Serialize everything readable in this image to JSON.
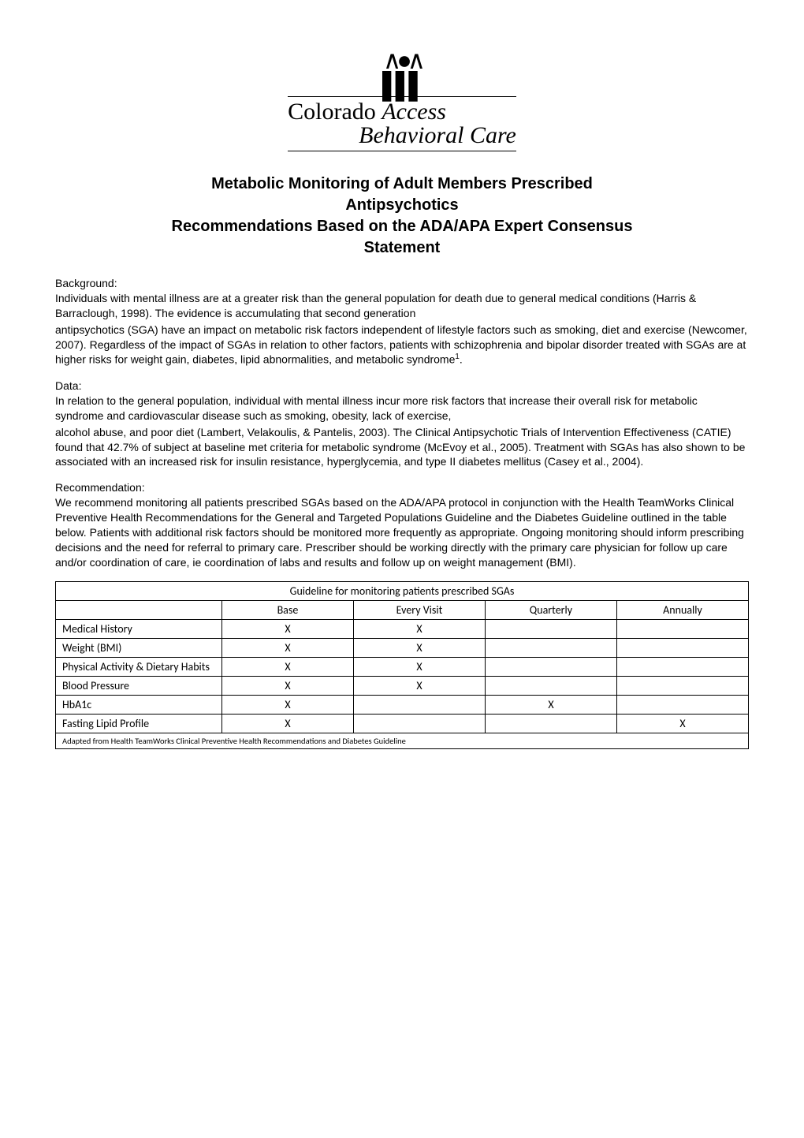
{
  "logo": {
    "line1_plain": "Colorado ",
    "line1_italic": "Access",
    "line2": "Behavioral Care"
  },
  "title_lines": [
    "Metabolic Monitoring of Adult Members Prescribed",
    "Antipsychotics",
    "Recommendations Based on the ADA/APA Expert Consensus",
    "Statement"
  ],
  "sections": {
    "background": {
      "label": "Background:",
      "p1": "Individuals with mental illness are at a greater risk than the general population for death due to general medical conditions (Harris & Barraclough, 1998). The evidence is accumulating that second generation",
      "p2_pre": "antipsychotics (SGA) have an impact on metabolic risk factors independent of lifestyle factors such as smoking, diet and exercise (Newcomer, 2007). Regardless of the impact of SGAs in relation to other factors, patients with schizophrenia and bipolar disorder treated with SGAs are at higher risks for weight gain, diabetes, lipid abnormalities, and metabolic syndrome",
      "p2_sup": "1",
      "p2_post": "."
    },
    "data": {
      "label": "Data:",
      "p1": "In relation to the general population, individual with mental illness incur more risk factors that increase their overall risk for metabolic syndrome and cardiovascular disease such as smoking, obesity, lack of exercise,",
      "p2": "alcohol abuse, and poor diet (Lambert, Velakoulis, & Pantelis, 2003). The Clinical Antipsychotic Trials of Intervention Effectiveness (CATIE) found that 42.7% of subject at baseline met criteria for metabolic syndrome (McEvoy et al., 2005). Treatment with SGAs has also shown to be associated with an increased risk for insulin resistance, hyperglycemia, and type II diabetes mellitus (Casey et al., 2004)."
    },
    "recommendation": {
      "label": "Recommendation:",
      "p1": "We recommend monitoring all patients prescribed SGAs based on the ADA/APA protocol in conjunction with the Health TeamWorks Clinical Preventive Health Recommendations for the General and Targeted Populations Guideline and the Diabetes Guideline outlined in the table below. Patients with additional risk factors should be monitored more frequently as appropriate. Ongoing monitoring should inform prescribing decisions and the need for referral to primary care. Prescriber should be working directly with the primary care physician for follow up care and/or coordination of care, ie coordination of labs and results and follow up on weight management (BMI)."
    }
  },
  "table": {
    "caption": "Guideline for monitoring patients prescribed SGAs",
    "columns": [
      "",
      "Base",
      "Every Visit",
      "Quarterly",
      "Annually"
    ],
    "col_widths": [
      "24%",
      "19%",
      "19%",
      "19%",
      "19%"
    ],
    "rows": [
      {
        "label": "Medical History",
        "cells": [
          "X",
          "X",
          "",
          ""
        ]
      },
      {
        "label": "Weight (BMI)",
        "cells": [
          "X",
          "X",
          "",
          ""
        ]
      },
      {
        "label": "Physical Activity & Dietary Habits",
        "cells": [
          "X",
          "X",
          "",
          ""
        ]
      },
      {
        "label": "Blood Pressure",
        "cells": [
          "X",
          "X",
          "",
          ""
        ]
      },
      {
        "label": "HbA1c",
        "cells": [
          "X",
          "",
          "X",
          ""
        ]
      },
      {
        "label": "Fasting Lipid Profile",
        "cells": [
          "X",
          "",
          "",
          "X"
        ]
      }
    ],
    "footnote": "Adapted from Health TeamWorks Clinical Preventive Health Recommendations and Diabetes Guideline"
  }
}
